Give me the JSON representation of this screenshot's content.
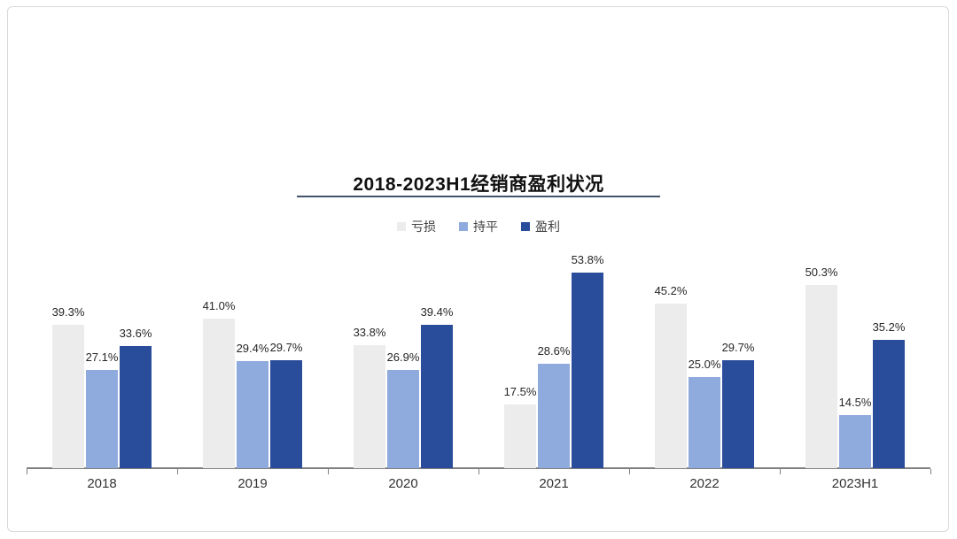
{
  "page": {
    "background": "#ffffff",
    "border_color": "#d9d9d9"
  },
  "chart_data": {
    "type": "bar",
    "title": "2018-2023H1经销商盈利状况",
    "title_underline_color": "#44546a",
    "categories": [
      "2018",
      "2019",
      "2020",
      "2021",
      "2022",
      "2023H1"
    ],
    "series": [
      {
        "name": "亏损",
        "color": "#ececec",
        "values": [
          39.3,
          41.0,
          33.8,
          17.5,
          45.2,
          50.3
        ]
      },
      {
        "name": "持平",
        "color": "#8faadc",
        "values": [
          27.1,
          29.4,
          26.9,
          28.6,
          25.0,
          14.5
        ]
      },
      {
        "name": "盈利",
        "color": "#2a4d9b",
        "values": [
          33.6,
          29.7,
          39.4,
          53.8,
          29.7,
          35.2
        ]
      }
    ],
    "value_suffix": "%",
    "value_decimals": 1,
    "data_labels": true,
    "ylim": [
      0,
      60
    ],
    "grid": false,
    "legend_position": "top",
    "axis_color": "#808080",
    "label_color": "#262626"
  }
}
